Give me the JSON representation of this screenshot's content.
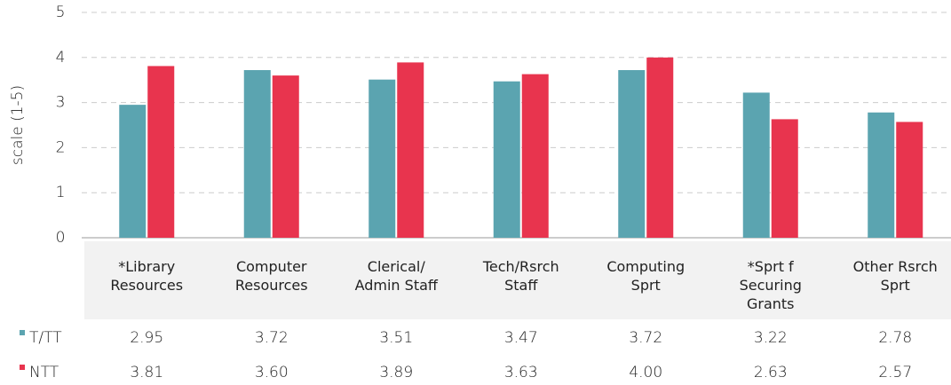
{
  "chart_data": {
    "type": "bar",
    "y_label": "scale (1-5)",
    "categories": [
      "*Library\nResources",
      "Computer\nResources",
      "Clerical/\nAdmin Staff",
      "Tech/Rsrch\nStaff",
      "Computing\nSprt",
      "*Sprt f\nSecuring\nGrants",
      "Other Rsrch\nSprt"
    ],
    "series": [
      {
        "name": "T/TT",
        "color": "#5ba4b0",
        "values": [
          2.95,
          3.72,
          3.51,
          3.47,
          3.72,
          3.22,
          2.78
        ],
        "value_labels": [
          "2.95",
          "3.72",
          "3.51",
          "3.47",
          "3.72",
          "3.22",
          "2.78"
        ]
      },
      {
        "name": "NTT",
        "color": "#e8344e",
        "values": [
          3.81,
          3.6,
          3.89,
          3.63,
          4.0,
          2.63,
          2.57
        ],
        "value_labels": [
          "3.81",
          "3.60",
          "3.89",
          "3.63",
          "4.00",
          "2.63",
          "2.57"
        ]
      }
    ],
    "ylim": [
      0,
      5
    ],
    "yticks": [
      0,
      1,
      2,
      3,
      4,
      5
    ],
    "grid": true
  }
}
